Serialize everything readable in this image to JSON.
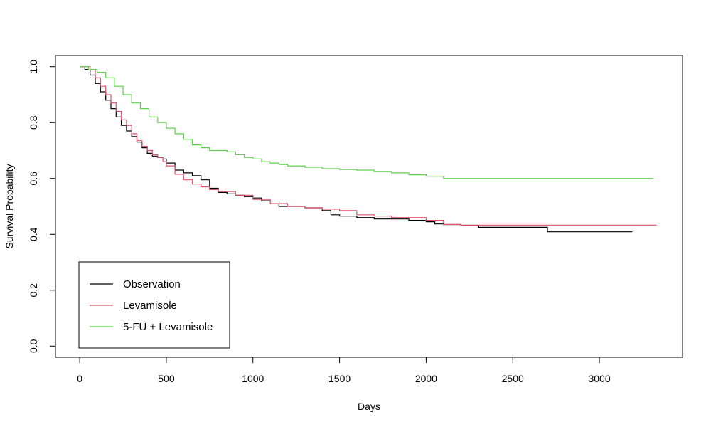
{
  "chart_data": {
    "type": "line",
    "xlabel": "Days",
    "ylabel": "Survival Probability",
    "xlim": [
      -140,
      3480
    ],
    "ylim": [
      -0.04,
      1.04
    ],
    "xticks": [
      0,
      500,
      1000,
      1500,
      2000,
      2500,
      3000
    ],
    "yticks": [
      0.0,
      0.2,
      0.4,
      0.6,
      0.8,
      1.0
    ],
    "ytick_labels": [
      "0.0",
      "0.2",
      "0.4",
      "0.6",
      "0.8",
      "1.0"
    ],
    "legend_position": "bottom-left",
    "series": [
      {
        "name": "Observation",
        "color": "#000000",
        "x": [
          0,
          30,
          60,
          90,
          120,
          150,
          180,
          210,
          240,
          270,
          300,
          330,
          360,
          390,
          420,
          450,
          480,
          500,
          550,
          600,
          650,
          700,
          750,
          800,
          850,
          900,
          950,
          1000,
          1050,
          1100,
          1150,
          1200,
          1300,
          1400,
          1450,
          1500,
          1600,
          1700,
          1800,
          1900,
          2000,
          2050,
          2100,
          2200,
          2300,
          2400,
          2500,
          2600,
          2700,
          2800,
          3000,
          3190
        ],
        "y": [
          1.0,
          0.99,
          0.97,
          0.94,
          0.91,
          0.88,
          0.85,
          0.82,
          0.79,
          0.77,
          0.75,
          0.73,
          0.71,
          0.69,
          0.68,
          0.675,
          0.67,
          0.655,
          0.63,
          0.62,
          0.61,
          0.595,
          0.565,
          0.55,
          0.545,
          0.54,
          0.535,
          0.53,
          0.52,
          0.51,
          0.5,
          0.5,
          0.495,
          0.485,
          0.47,
          0.465,
          0.46,
          0.455,
          0.455,
          0.45,
          0.445,
          0.437,
          0.435,
          0.432,
          0.425,
          0.425,
          0.425,
          0.425,
          0.409,
          0.409,
          0.409,
          0.409
        ]
      },
      {
        "name": "Levamisole",
        "color": "#DF536B",
        "x": [
          0,
          30,
          60,
          90,
          120,
          150,
          180,
          210,
          240,
          270,
          300,
          330,
          360,
          390,
          420,
          450,
          480,
          500,
          550,
          600,
          650,
          700,
          750,
          800,
          900,
          1000,
          1100,
          1200,
          1300,
          1400,
          1500,
          1600,
          1700,
          1800,
          1900,
          2000,
          2100,
          2200,
          2300,
          2500,
          3000,
          3330
        ],
        "y": [
          1.0,
          1.0,
          0.99,
          0.96,
          0.93,
          0.9,
          0.87,
          0.84,
          0.81,
          0.79,
          0.76,
          0.735,
          0.715,
          0.7,
          0.685,
          0.675,
          0.66,
          0.645,
          0.615,
          0.595,
          0.58,
          0.57,
          0.56,
          0.553,
          0.54,
          0.525,
          0.51,
          0.5,
          0.495,
          0.49,
          0.485,
          0.47,
          0.465,
          0.46,
          0.46,
          0.45,
          0.435,
          0.433,
          0.433,
          0.433,
          0.433,
          0.433
        ]
      },
      {
        "name": "5-FU + Levamisole",
        "color": "#61D04F",
        "x": [
          0,
          50,
          100,
          150,
          200,
          250,
          300,
          350,
          400,
          450,
          500,
          550,
          600,
          650,
          700,
          750,
          800,
          850,
          900,
          950,
          1000,
          1050,
          1100,
          1150,
          1200,
          1300,
          1400,
          1500,
          1600,
          1700,
          1800,
          1900,
          2000,
          2100,
          2200,
          2500,
          3000,
          3310
        ],
        "y": [
          1.0,
          0.99,
          0.98,
          0.96,
          0.93,
          0.9,
          0.87,
          0.85,
          0.82,
          0.8,
          0.78,
          0.76,
          0.74,
          0.72,
          0.71,
          0.7,
          0.7,
          0.695,
          0.685,
          0.675,
          0.67,
          0.66,
          0.655,
          0.65,
          0.645,
          0.64,
          0.635,
          0.632,
          0.63,
          0.625,
          0.62,
          0.613,
          0.608,
          0.6,
          0.6,
          0.6,
          0.6,
          0.6
        ]
      }
    ]
  }
}
